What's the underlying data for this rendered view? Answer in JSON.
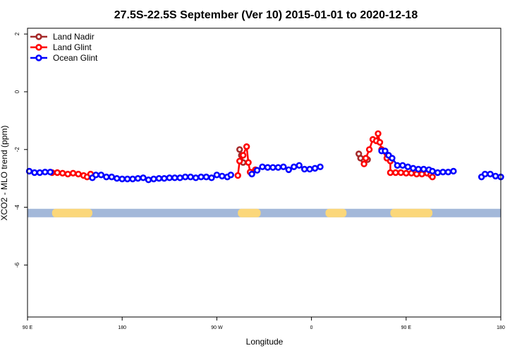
{
  "chart_data": {
    "type": "scatter",
    "title": "27.5S-22.5S September (Ver 10)   2015-01-01 to 2020-12-18",
    "xlabel": "Longitude",
    "ylabel": "XCO2 - MLO trend (ppm)",
    "xlim": [
      -90,
      180
    ],
    "ylim": [
      -7.8,
      2.2
    ],
    "x_ticks": [
      {
        "value": -90,
        "label": "90 E"
      },
      {
        "value": -36,
        "label": "180"
      },
      {
        "value": 18,
        "label": "90 W"
      },
      {
        "value": 72,
        "label": "0"
      },
      {
        "value": 126,
        "label": "90 E"
      },
      {
        "value": 180,
        "label": "180"
      }
    ],
    "y_ticks": [
      {
        "value": 2,
        "label": "2"
      },
      {
        "value": 0,
        "label": "0"
      },
      {
        "value": -2,
        "label": "-2"
      },
      {
        "value": -4,
        "label": "-4"
      },
      {
        "value": -6,
        "label": "-6"
      }
    ],
    "legend": {
      "placement": "top-left",
      "entries": [
        {
          "name": "Land Nadir",
          "color": "#a52a2a"
        },
        {
          "name": "Land Glint",
          "color": "#ff0000"
        },
        {
          "name": "Ocean Glint",
          "color": "#0000ff"
        }
      ]
    },
    "land_mask": {
      "y": -4.2,
      "ocean_color": "#a3b8d9",
      "land_color": "#fbd77a",
      "land_segments": [
        [
          -76,
          -53
        ],
        [
          30,
          43
        ],
        [
          80,
          92
        ],
        [
          117,
          141
        ]
      ]
    },
    "series": [
      {
        "name": "Land Nadir",
        "color": "#a52a2a",
        "points": [
          {
            "x": 31,
            "y": -2.0
          },
          {
            "x": 32,
            "y": -2.2
          },
          {
            "x": 33,
            "y": -2.45
          },
          {
            "x": 99,
            "y": -2.15
          },
          {
            "x": 100,
            "y": -2.3
          },
          {
            "x": 102,
            "y": -2.4
          },
          {
            "x": 104,
            "y": -2.35
          },
          {
            "x": 116,
            "y": -2.2
          },
          {
            "x": 117,
            "y": -2.3
          }
        ]
      },
      {
        "name": "Land Glint",
        "color": "#ff0000",
        "points": [
          {
            "x": -76,
            "y": -2.8
          },
          {
            "x": -73,
            "y": -2.8
          },
          {
            "x": -70,
            "y": -2.82
          },
          {
            "x": -67,
            "y": -2.85
          },
          {
            "x": -64,
            "y": -2.82
          },
          {
            "x": -61,
            "y": -2.85
          },
          {
            "x": -58,
            "y": -2.9
          },
          {
            "x": -56,
            "y": -2.95
          },
          {
            "x": -54,
            "y": -2.85
          },
          {
            "x": 30,
            "y": -2.9
          },
          {
            "x": 31,
            "y": -2.4
          },
          {
            "x": 33,
            "y": -2.2
          },
          {
            "x": 35,
            "y": -1.9
          },
          {
            "x": 36,
            "y": -2.45
          },
          {
            "x": 37,
            "y": -2.78
          },
          {
            "x": 40,
            "y": -2.7
          },
          {
            "x": 102,
            "y": -2.5
          },
          {
            "x": 103,
            "y": -2.3
          },
          {
            "x": 105,
            "y": -2.0
          },
          {
            "x": 107,
            "y": -1.65
          },
          {
            "x": 109,
            "y": -1.7
          },
          {
            "x": 110,
            "y": -1.45
          },
          {
            "x": 111,
            "y": -1.75
          },
          {
            "x": 112,
            "y": -2.0
          },
          {
            "x": 115,
            "y": -2.3
          },
          {
            "x": 117,
            "y": -2.4
          },
          {
            "x": 117,
            "y": -2.8
          },
          {
            "x": 120,
            "y": -2.8
          },
          {
            "x": 123,
            "y": -2.8
          },
          {
            "x": 126,
            "y": -2.82
          },
          {
            "x": 129,
            "y": -2.82
          },
          {
            "x": 132,
            "y": -2.85
          },
          {
            "x": 135,
            "y": -2.85
          },
          {
            "x": 138,
            "y": -2.82
          },
          {
            "x": 140,
            "y": -2.88
          },
          {
            "x": 141,
            "y": -2.95
          }
        ]
      },
      {
        "name": "Ocean Glint",
        "color": "#0000ff",
        "points": [
          {
            "x": -89,
            "y": -2.75
          },
          {
            "x": -86,
            "y": -2.8
          },
          {
            "x": -83,
            "y": -2.8
          },
          {
            "x": -80,
            "y": -2.78
          },
          {
            "x": -77,
            "y": -2.78
          },
          {
            "x": -53,
            "y": -2.98
          },
          {
            "x": -51,
            "y": -2.88
          },
          {
            "x": -48,
            "y": -2.88
          },
          {
            "x": -45,
            "y": -2.95
          },
          {
            "x": -42,
            "y": -2.95
          },
          {
            "x": -39,
            "y": -3.0
          },
          {
            "x": -36,
            "y": -3.02
          },
          {
            "x": -33,
            "y": -3.02
          },
          {
            "x": -30,
            "y": -3.02
          },
          {
            "x": -27,
            "y": -3.0
          },
          {
            "x": -24,
            "y": -2.98
          },
          {
            "x": -21,
            "y": -3.05
          },
          {
            "x": -18,
            "y": -3.02
          },
          {
            "x": -15,
            "y": -3.0
          },
          {
            "x": -12,
            "y": -3.0
          },
          {
            "x": -9,
            "y": -2.98
          },
          {
            "x": -6,
            "y": -2.98
          },
          {
            "x": -3,
            "y": -2.98
          },
          {
            "x": 0,
            "y": -2.95
          },
          {
            "x": 3,
            "y": -2.95
          },
          {
            "x": 6,
            "y": -2.98
          },
          {
            "x": 9,
            "y": -2.95
          },
          {
            "x": 12,
            "y": -2.95
          },
          {
            "x": 15,
            "y": -2.98
          },
          {
            "x": 18,
            "y": -2.88
          },
          {
            "x": 21,
            "y": -2.92
          },
          {
            "x": 24,
            "y": -2.95
          },
          {
            "x": 26,
            "y": -2.88
          },
          {
            "x": 38,
            "y": -2.85
          },
          {
            "x": 41,
            "y": -2.72
          },
          {
            "x": 44,
            "y": -2.6
          },
          {
            "x": 47,
            "y": -2.62
          },
          {
            "x": 50,
            "y": -2.62
          },
          {
            "x": 53,
            "y": -2.62
          },
          {
            "x": 56,
            "y": -2.6
          },
          {
            "x": 59,
            "y": -2.7
          },
          {
            "x": 62,
            "y": -2.6
          },
          {
            "x": 65,
            "y": -2.55
          },
          {
            "x": 68,
            "y": -2.68
          },
          {
            "x": 71,
            "y": -2.68
          },
          {
            "x": 74,
            "y": -2.65
          },
          {
            "x": 77,
            "y": -2.6
          },
          {
            "x": 112,
            "y": -2.05
          },
          {
            "x": 114,
            "y": -2.05
          },
          {
            "x": 116,
            "y": -2.2
          },
          {
            "x": 118,
            "y": -2.3
          },
          {
            "x": 121,
            "y": -2.55
          },
          {
            "x": 124,
            "y": -2.55
          },
          {
            "x": 127,
            "y": -2.6
          },
          {
            "x": 130,
            "y": -2.65
          },
          {
            "x": 133,
            "y": -2.68
          },
          {
            "x": 136,
            "y": -2.68
          },
          {
            "x": 139,
            "y": -2.7
          },
          {
            "x": 141,
            "y": -2.75
          },
          {
            "x": 144,
            "y": -2.8
          },
          {
            "x": 147,
            "y": -2.78
          },
          {
            "x": 150,
            "y": -2.78
          },
          {
            "x": 153,
            "y": -2.75
          },
          {
            "x": 169,
            "y": -2.95
          },
          {
            "x": 171,
            "y": -2.85
          },
          {
            "x": 174,
            "y": -2.85
          },
          {
            "x": 177,
            "y": -2.92
          },
          {
            "x": 180,
            "y": -2.95
          }
        ]
      }
    ]
  }
}
